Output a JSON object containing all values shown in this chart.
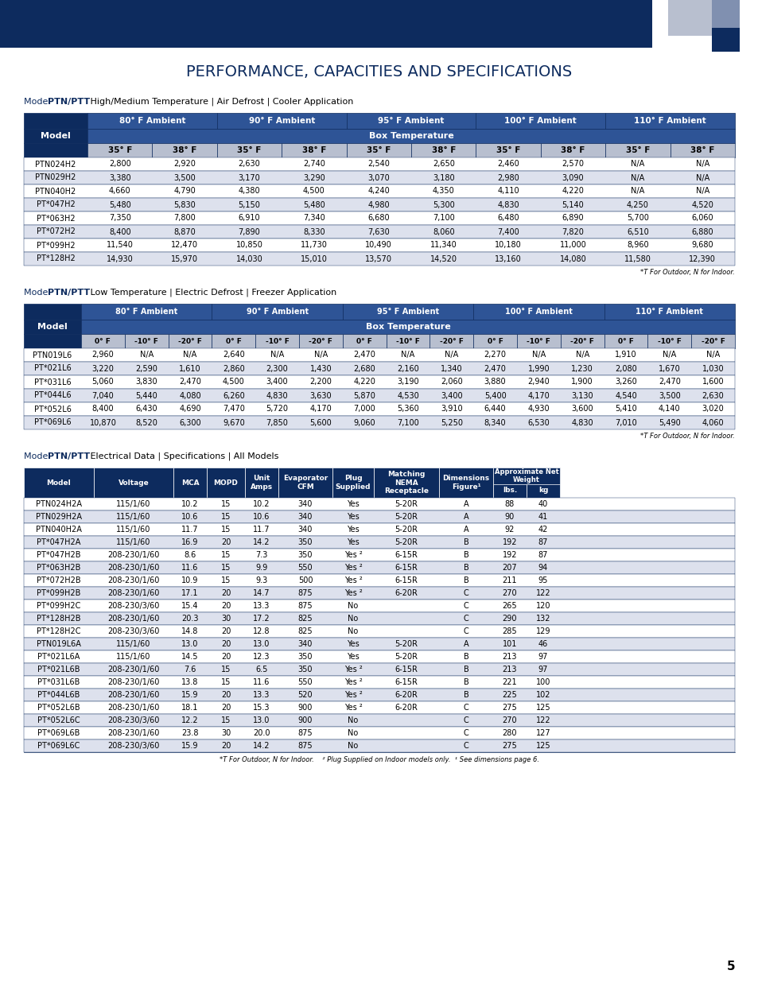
{
  "title": "PERFORMANCE, CAPACITIES AND SPECIFICATIONS",
  "header_bg": "#0d2b5e",
  "header_text": "#ffffff",
  "subheader_bg": "#4a6da7",
  "row_odd_bg": "#ffffff",
  "row_even_bg": "#d9dde8",
  "col_header_bg": "#0d2b5e",
  "col_header_text": "#ffffff",
  "border_color": "#0d2b5e",
  "table1_subtitle": "Model PTN/PTT High/Medium Temperature | Air Defrost | Cooler Application",
  "table1_headers_top": [
    "",
    "80° F Ambient",
    "90° F Ambient",
    "95° F Ambient",
    "100° F Ambient",
    "110° F Ambient"
  ],
  "table1_headers_mid": [
    "Model",
    "Box Temperature"
  ],
  "table1_headers_bot": [
    "",
    "35° F",
    "38° F",
    "35° F",
    "38° F",
    "35° F",
    "38° F",
    "35° F",
    "38° F",
    "35° F",
    "38° F"
  ],
  "table1_data": [
    [
      "PTN024H2",
      "2,800",
      "2,920",
      "2,630",
      "2,740",
      "2,540",
      "2,650",
      "2,460",
      "2,570",
      "N/A",
      "N/A"
    ],
    [
      "PTN029H2",
      "3,380",
      "3,500",
      "3,170",
      "3,290",
      "3,070",
      "3,180",
      "2,980",
      "3,090",
      "N/A",
      "N/A"
    ],
    [
      "PTN040H2",
      "4,660",
      "4,790",
      "4,380",
      "4,500",
      "4,240",
      "4,350",
      "4,110",
      "4,220",
      "N/A",
      "N/A"
    ],
    [
      "PT*047H2",
      "5,480",
      "5,830",
      "5,150",
      "5,480",
      "4,980",
      "5,300",
      "4,830",
      "5,140",
      "4,250",
      "4,520"
    ],
    [
      "PT*063H2",
      "7,350",
      "7,800",
      "6,910",
      "7,340",
      "6,680",
      "7,100",
      "6,480",
      "6,890",
      "5,700",
      "6,060"
    ],
    [
      "PT*072H2",
      "8,400",
      "8,870",
      "7,890",
      "8,330",
      "7,630",
      "8,060",
      "7,400",
      "7,820",
      "6,510",
      "6,880"
    ],
    [
      "PT*099H2",
      "11,540",
      "12,470",
      "10,850",
      "11,730",
      "10,490",
      "11,340",
      "10,180",
      "11,000",
      "8,960",
      "9,680"
    ],
    [
      "PT*128H2",
      "14,930",
      "15,970",
      "14,030",
      "15,010",
      "13,570",
      "14,520",
      "13,160",
      "14,080",
      "11,580",
      "12,390"
    ]
  ],
  "table1_footnote": "*T For Outdoor, N for Indoor.",
  "table2_subtitle": "Model PTN/PTT Low Temperature | Electric Defrost | Freezer Application",
  "table2_headers_top": [
    "",
    "80° F Ambient",
    "90° F Ambient",
    "95° F Ambient",
    "100° F Ambient",
    "110° F Ambient"
  ],
  "table2_headers_mid": [
    "Model",
    "Box Temperature"
  ],
  "table2_headers_bot": [
    "",
    "0° F",
    "-10° F",
    "-20° F",
    "0° F",
    "-10° F",
    "-20° F",
    "0° F",
    "-10° F",
    "-20° F",
    "0° F",
    "-10° F",
    "-20° F",
    "0° F",
    "-10° F",
    "-20° F"
  ],
  "table2_data": [
    [
      "PTN019L6",
      "2,960",
      "N/A",
      "N/A",
      "2,640",
      "N/A",
      "N/A",
      "2,470",
      "N/A",
      "N/A",
      "2,270",
      "N/A",
      "N/A",
      "1,910",
      "N/A",
      "N/A"
    ],
    [
      "PT*021L6",
      "3,220",
      "2,590",
      "1,610",
      "2,860",
      "2,300",
      "1,430",
      "2,680",
      "2,160",
      "1,340",
      "2,470",
      "1,990",
      "1,230",
      "2,080",
      "1,670",
      "1,030"
    ],
    [
      "PT*031L6",
      "5,060",
      "3,830",
      "2,470",
      "4,500",
      "3,400",
      "2,200",
      "4,220",
      "3,190",
      "2,060",
      "3,880",
      "2,940",
      "1,900",
      "3,260",
      "2,470",
      "1,600"
    ],
    [
      "PT*044L6",
      "7,040",
      "5,440",
      "4,080",
      "6,260",
      "4,830",
      "3,630",
      "5,870",
      "4,530",
      "3,400",
      "5,400",
      "4,170",
      "3,130",
      "4,540",
      "3,500",
      "2,630"
    ],
    [
      "PT*052L6",
      "8,400",
      "6,430",
      "4,690",
      "7,470",
      "5,720",
      "4,170",
      "7,000",
      "5,360",
      "3,910",
      "6,440",
      "4,930",
      "3,600",
      "5,410",
      "4,140",
      "3,020"
    ],
    [
      "PT*069L6",
      "10,870",
      "8,520",
      "6,300",
      "9,670",
      "7,850",
      "5,600",
      "9,060",
      "7,100",
      "5,250",
      "8,340",
      "6,530",
      "4,830",
      "7,010",
      "5,490",
      "4,060"
    ]
  ],
  "table2_footnote": "*T For Outdoor, N for Indoor.",
  "table3_subtitle": "Model PTN/PTT Electrical Data | Specifications | All Models",
  "table3_headers": [
    "Model",
    "Voltage",
    "MCA",
    "MOPD",
    "Unit\nAmps",
    "Evaporator\nCFM",
    "Plug\nSupplied",
    "Matching\nNEMA\nReceptacle",
    "Dimensions\nFigure¹",
    "Approximate Net\nWeight\nlbs.",
    "kg"
  ],
  "table3_data": [
    [
      "PTN024H2A",
      "115/1/60",
      "10.2",
      "15",
      "10.2",
      "340",
      "Yes",
      "5-20R",
      "A",
      "88",
      "40"
    ],
    [
      "PTN029H2A",
      "115/1/60",
      "10.6",
      "15",
      "10.6",
      "340",
      "Yes",
      "5-20R",
      "A",
      "90",
      "41"
    ],
    [
      "PTN040H2A",
      "115/1/60",
      "11.7",
      "15",
      "11.7",
      "340",
      "Yes",
      "5-20R",
      "A",
      "92",
      "42"
    ],
    [
      "PT*047H2A",
      "115/1/60",
      "16.9",
      "20",
      "14.2",
      "350",
      "Yes",
      "5-20R",
      "B",
      "192",
      "87"
    ],
    [
      "PT*047H2B",
      "208-230/1/60",
      "8.6",
      "15",
      "7.3",
      "350",
      "Yes ²",
      "6-15R",
      "B",
      "192",
      "87"
    ],
    [
      "PT*063H2B",
      "208-230/1/60",
      "11.6",
      "15",
      "9.9",
      "550",
      "Yes ²",
      "6-15R",
      "B",
      "207",
      "94"
    ],
    [
      "PT*072H2B",
      "208-230/1/60",
      "10.9",
      "15",
      "9.3",
      "500",
      "Yes ²",
      "6-15R",
      "B",
      "211",
      "95"
    ],
    [
      "PT*099H2B",
      "208-230/1/60",
      "17.1",
      "20",
      "14.7",
      "875",
      "Yes ²",
      "6-20R",
      "C",
      "270",
      "122"
    ],
    [
      "PT*099H2C",
      "208-230/3/60",
      "15.4",
      "20",
      "13.3",
      "875",
      "No",
      "",
      "C",
      "265",
      "120"
    ],
    [
      "PT*128H2B",
      "208-230/1/60",
      "20.3",
      "30",
      "17.2",
      "825",
      "No",
      "",
      "C",
      "290",
      "132"
    ],
    [
      "PT*128H2C",
      "208-230/3/60",
      "14.8",
      "20",
      "12.8",
      "825",
      "No",
      "",
      "C",
      "285",
      "129"
    ],
    [
      "PTN019L6A",
      "115/1/60",
      "13.0",
      "20",
      "13.0",
      "340",
      "Yes",
      "5-20R",
      "A",
      "101",
      "46"
    ],
    [
      "PT*021L6A",
      "115/1/60",
      "14.5",
      "20",
      "12.3",
      "350",
      "Yes",
      "5-20R",
      "B",
      "213",
      "97"
    ],
    [
      "PT*021L6B",
      "208-230/1/60",
      "7.6",
      "15",
      "6.5",
      "350",
      "Yes ²",
      "6-15R",
      "B",
      "213",
      "97"
    ],
    [
      "PT*031L6B",
      "208-230/1/60",
      "13.8",
      "15",
      "11.6",
      "550",
      "Yes ²",
      "6-15R",
      "B",
      "221",
      "100"
    ],
    [
      "PT*044L6B",
      "208-230/1/60",
      "15.9",
      "20",
      "13.3",
      "520",
      "Yes ²",
      "6-20R",
      "B",
      "225",
      "102"
    ],
    [
      "PT*052L6B",
      "208-230/1/60",
      "18.1",
      "20",
      "15.3",
      "900",
      "Yes ²",
      "6-20R",
      "C",
      "275",
      "125"
    ],
    [
      "PT*052L6C",
      "208-230/3/60",
      "12.2",
      "15",
      "13.0",
      "900",
      "No",
      "",
      "C",
      "270",
      "122"
    ],
    [
      "PT*069L6B",
      "208-230/1/60",
      "23.8",
      "30",
      "20.0",
      "875",
      "No",
      "",
      "C",
      "280",
      "127"
    ],
    [
      "PT*069L6C",
      "208-230/3/60",
      "15.9",
      "20",
      "14.2",
      "875",
      "No",
      "",
      "C",
      "275",
      "125"
    ]
  ],
  "table3_footnote": "*T For Outdoor, N for Indoor.    ² Plug Supplied on Indoor models only.  ¹ See dimensions page 6.",
  "page_number": "5"
}
